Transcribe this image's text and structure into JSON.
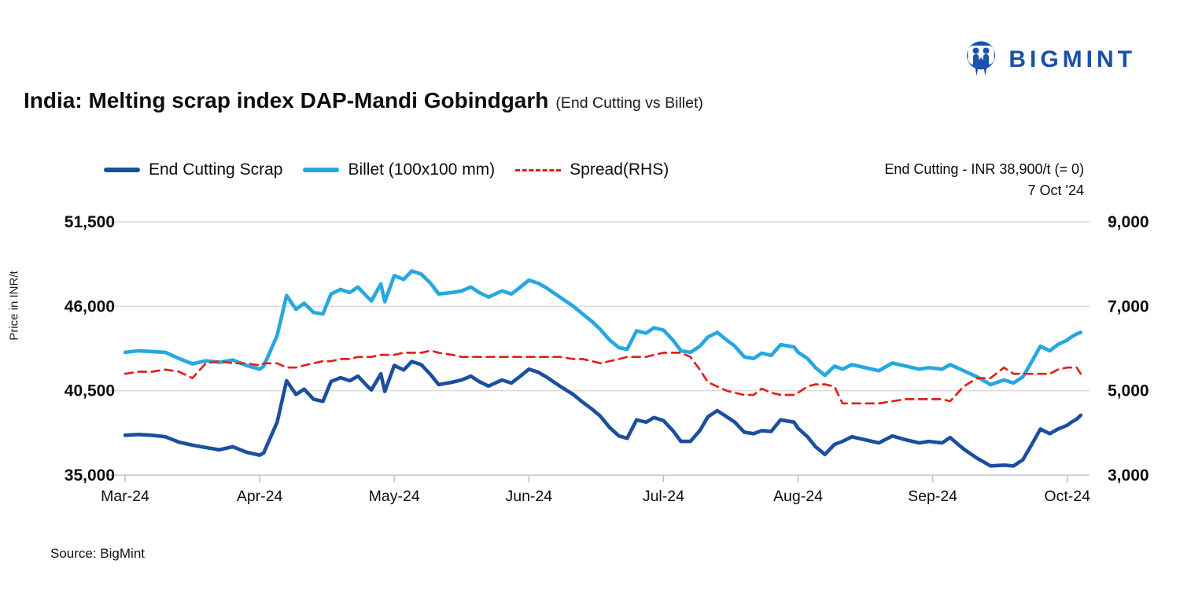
{
  "logo": {
    "text": "BIGMINT",
    "color": "#1a4faa"
  },
  "title": {
    "main": "India: Melting scrap index DAP-Mandi Gobindgarh",
    "sub": "(End Cutting vs Billet)"
  },
  "annotation": {
    "line1": "End Cutting - INR 38,900/t (= 0)",
    "line2": "7 Oct '24"
  },
  "source": "Source: BigMint",
  "chart_data": {
    "type": "line",
    "title": "India: Melting scrap index DAP-Mandi Gobindgarh (End Cutting vs Billet)",
    "ylabel": "Price in INR/t",
    "grid": true,
    "legend_position": "top",
    "colors": {
      "end_cutting": "#1b4f9e",
      "billet": "#27a7e0",
      "spread": "#e0211c",
      "gridline": "#d9d9d9",
      "axis": "#c2c2c2"
    },
    "left_axis": {
      "min": 35000,
      "max": 51500,
      "ticks": [
        {
          "label": "35,000",
          "v": 35000
        },
        {
          "label": "40,500",
          "v": 40500
        },
        {
          "label": "46,000",
          "v": 46000
        },
        {
          "label": "51,500",
          "v": 51500
        }
      ]
    },
    "right_axis": {
      "min": 3000,
      "max": 9000,
      "ticks": [
        {
          "label": "3,000",
          "v": 3000
        },
        {
          "label": "5,000",
          "v": 5000
        },
        {
          "label": "7,000",
          "v": 7000
        },
        {
          "label": "9,000",
          "v": 9000
        }
      ]
    },
    "x_tick_labels": [
      "Mar-24",
      "Apr-24",
      "May-24",
      "Jun-24",
      "Jul-24",
      "Aug-24",
      "Sep-24",
      "Oct-24"
    ],
    "legend": [
      {
        "name": "End Cutting Scrap",
        "color": "#1b4f9e",
        "style": "solid"
      },
      {
        "name": "Billet (100x100 mm)",
        "color": "#27a7e0",
        "style": "solid"
      },
      {
        "name": "Spread(RHS)",
        "color": "#e0211c",
        "style": "dashed"
      }
    ],
    "dates": [
      "01-Mar",
      "04-Mar",
      "07-Mar",
      "10-Mar",
      "13-Mar",
      "16-Mar",
      "19-Mar",
      "22-Mar",
      "25-Mar",
      "28-Mar",
      "31-Mar",
      "02-Apr",
      "05-Apr",
      "07-Apr",
      "09-Apr",
      "11-Apr",
      "13-Apr",
      "15-Apr",
      "17-Apr",
      "19-Apr",
      "21-Apr",
      "23-Apr",
      "25-Apr",
      "26-Apr",
      "28-Apr",
      "29-Apr",
      "01-May",
      "03-May",
      "05-May",
      "07-May",
      "09-May",
      "11-May",
      "14-May",
      "16-May",
      "18-May",
      "20-May",
      "22-May",
      "25-May",
      "27-May",
      "29-May",
      "01-Jun",
      "03-Jun",
      "05-Jun",
      "08-Jun",
      "11-Jun",
      "13-Jun",
      "15-Jun",
      "17-Jun",
      "19-Jun",
      "21-Jun",
      "23-Jun",
      "25-Jun",
      "27-Jun",
      "29-Jun",
      "01-Jul",
      "03-Jul",
      "05-Jul",
      "07-Jul",
      "09-Jul",
      "11-Jul",
      "13-Jul",
      "15-Jul",
      "17-Jul",
      "19-Jul",
      "21-Jul",
      "23-Jul",
      "25-Jul",
      "27-Jul",
      "30-Jul",
      "01-Aug",
      "03-Aug",
      "05-Aug",
      "07-Aug",
      "09-Aug",
      "11-Aug",
      "13-Aug",
      "16-Aug",
      "19-Aug",
      "22-Aug",
      "25-Aug",
      "28-Aug",
      "31-Aug",
      "03-Sep",
      "05-Sep",
      "08-Sep",
      "11-Sep",
      "14-Sep",
      "17-Sep",
      "19-Sep",
      "21-Sep",
      "23-Sep",
      "25-Sep",
      "27-Sep",
      "29-Sep",
      "01-Oct",
      "03-Oct",
      "05-Oct",
      "07-Oct"
    ],
    "x_months": [
      0,
      0.1,
      0.2,
      0.3,
      0.4,
      0.5,
      0.6,
      0.7,
      0.8,
      0.9,
      1.0,
      1.03,
      1.13,
      1.2,
      1.27,
      1.33,
      1.4,
      1.47,
      1.53,
      1.6,
      1.67,
      1.73,
      1.8,
      1.83,
      1.9,
      1.93,
      2.0,
      2.07,
      2.13,
      2.2,
      2.27,
      2.33,
      2.43,
      2.5,
      2.57,
      2.63,
      2.7,
      2.8,
      2.87,
      2.93,
      3.0,
      3.07,
      3.13,
      3.23,
      3.33,
      3.4,
      3.47,
      3.53,
      3.6,
      3.67,
      3.73,
      3.8,
      3.87,
      3.93,
      4.0,
      4.07,
      4.13,
      4.2,
      4.27,
      4.33,
      4.4,
      4.47,
      4.53,
      4.6,
      4.67,
      4.73,
      4.8,
      4.87,
      4.97,
      5.0,
      5.07,
      5.13,
      5.2,
      5.27,
      5.33,
      5.4,
      5.5,
      5.6,
      5.7,
      5.8,
      5.9,
      5.97,
      6.07,
      6.13,
      6.23,
      6.33,
      6.43,
      6.53,
      6.6,
      6.67,
      6.73,
      6.8,
      6.87,
      6.93,
      7.0,
      7.03,
      7.07,
      7.1
    ],
    "series": [
      {
        "name": "End Cutting Scrap",
        "axis": "left",
        "values": [
          37600,
          37650,
          37600,
          37500,
          37150,
          36950,
          36800,
          36650,
          36850,
          36500,
          36300,
          36450,
          38450,
          41150,
          40250,
          40600,
          39950,
          39800,
          41100,
          41350,
          41150,
          41450,
          40800,
          40550,
          41600,
          40450,
          42150,
          41850,
          42400,
          42200,
          41550,
          40900,
          41050,
          41200,
          41450,
          41100,
          40800,
          41200,
          41000,
          41400,
          41900,
          41700,
          41400,
          40800,
          40250,
          39750,
          39300,
          38850,
          38100,
          37550,
          37400,
          38600,
          38450,
          38750,
          38550,
          37900,
          37200,
          37200,
          37900,
          38800,
          39200,
          38800,
          38450,
          37800,
          37700,
          37900,
          37850,
          38600,
          38450,
          38050,
          37500,
          36850,
          36350,
          37000,
          37200,
          37500,
          37300,
          37100,
          37550,
          37300,
          37100,
          37200,
          37100,
          37450,
          36700,
          36100,
          35600,
          35650,
          35600,
          36000,
          36900,
          38000,
          37700,
          38000,
          38250,
          38450,
          38650,
          38900
        ]
      },
      {
        "name": "Billet (100x100 mm)",
        "axis": "left",
        "values": [
          43000,
          43100,
          43050,
          43000,
          42600,
          42250,
          42450,
          42350,
          42500,
          42150,
          41900,
          42100,
          44100,
          46700,
          45800,
          46200,
          45600,
          45500,
          46800,
          47100,
          46900,
          47250,
          46600,
          46350,
          47450,
          46300,
          48000,
          47750,
          48300,
          48100,
          47500,
          46800,
          46900,
          47000,
          47250,
          46900,
          46600,
          47000,
          46800,
          47200,
          47700,
          47500,
          47200,
          46600,
          46000,
          45500,
          45000,
          44500,
          43800,
          43300,
          43200,
          44400,
          44250,
          44600,
          44450,
          43800,
          43100,
          43000,
          43400,
          44000,
          44300,
          43800,
          43400,
          42700,
          42600,
          42950,
          42800,
          43500,
          43350,
          43000,
          42600,
          42000,
          41500,
          42100,
          41900,
          42200,
          42000,
          41800,
          42300,
          42100,
          41900,
          42000,
          41900,
          42200,
          41800,
          41400,
          40900,
          41200,
          41000,
          41400,
          42300,
          43400,
          43100,
          43500,
          43800,
          44000,
          44200,
          44300
        ]
      },
      {
        "name": "Spread(RHS)",
        "axis": "right",
        "values": [
          5400,
          5450,
          5450,
          5500,
          5450,
          5300,
          5650,
          5700,
          5650,
          5650,
          5600,
          5650,
          5650,
          5550,
          5550,
          5600,
          5650,
          5700,
          5700,
          5750,
          5750,
          5800,
          5800,
          5800,
          5850,
          5850,
          5850,
          5900,
          5900,
          5900,
          5950,
          5900,
          5850,
          5800,
          5800,
          5800,
          5800,
          5800,
          5800,
          5800,
          5800,
          5800,
          5800,
          5800,
          5750,
          5750,
          5700,
          5650,
          5700,
          5750,
          5800,
          5800,
          5800,
          5850,
          5900,
          5900,
          5900,
          5800,
          5500,
          5200,
          5100,
          5000,
          4950,
          4900,
          4900,
          5050,
          4950,
          4900,
          4900,
          4950,
          5100,
          5150,
          5150,
          5100,
          4700,
          4700,
          4700,
          4700,
          4750,
          4800,
          4800,
          4800,
          4800,
          4750,
          5100,
          5300,
          5300,
          5550,
          5400,
          5400,
          5400,
          5400,
          5400,
          5500,
          5550,
          5550,
          5550,
          5400
        ]
      }
    ]
  }
}
